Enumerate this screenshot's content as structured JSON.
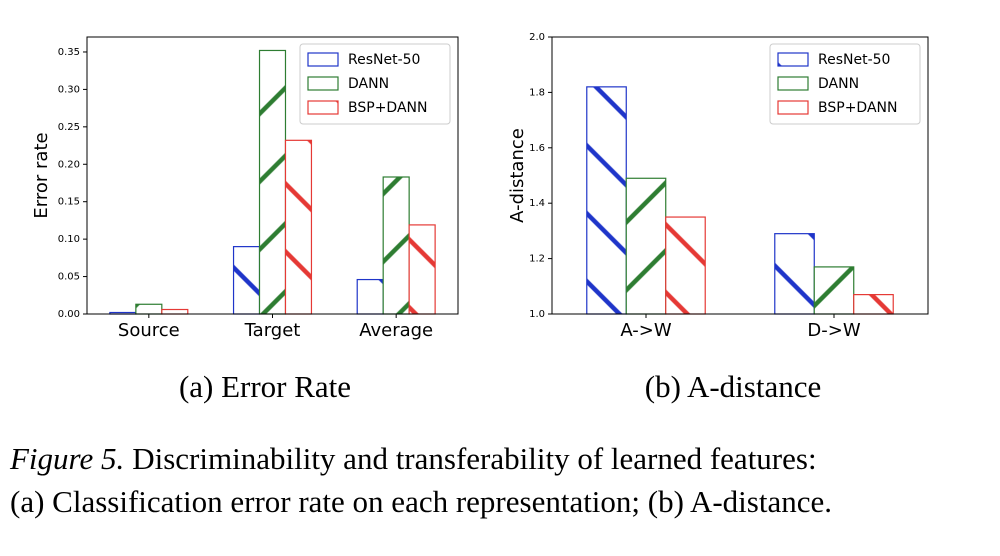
{
  "chart_data": [
    {
      "type": "bar",
      "title": "(a) Error Rate",
      "ylabel": "Error rate",
      "categories": [
        "Source",
        "Target",
        "Average"
      ],
      "series": [
        {
          "name": "ResNet-50",
          "color": "#1f35c9",
          "hatch": "/",
          "values": [
            0.002,
            0.09,
            0.046
          ]
        },
        {
          "name": "DANN",
          "color": "#2e7d32",
          "hatch": "\\",
          "values": [
            0.013,
            0.352,
            0.183
          ]
        },
        {
          "name": "BSP+DANN",
          "color": "#e53935",
          "hatch": "/",
          "values": [
            0.006,
            0.232,
            0.119
          ]
        }
      ],
      "ylim": [
        0,
        0.37
      ],
      "yticks": [
        {
          "value": 0,
          "label": "0.00"
        },
        0.05,
        {
          "value": 0.1,
          "label": "0.10"
        },
        0.15,
        {
          "value": 0.2,
          "label": "0.20"
        },
        0.25,
        {
          "value": 0.3,
          "label": "0.30"
        },
        0.35
      ],
      "legend": "upper right",
      "grid": false
    },
    {
      "type": "bar",
      "title": "(b) A-distance",
      "ylabel": "A-distance",
      "categories": [
        "A->W",
        "D->W"
      ],
      "series": [
        {
          "name": "ResNet-50",
          "color": "#1f35c9",
          "hatch": "/",
          "values": [
            1.82,
            1.29
          ]
        },
        {
          "name": "DANN",
          "color": "#2e7d32",
          "hatch": "\\",
          "values": [
            1.49,
            1.17
          ]
        },
        {
          "name": "BSP+DANN",
          "color": "#e53935",
          "hatch": "/",
          "values": [
            1.35,
            1.07
          ]
        }
      ],
      "ylim": [
        1.0,
        2.0
      ],
      "yticks": [
        {
          "value": 1.0,
          "label": "1.0"
        },
        1.2,
        1.4,
        1.6,
        1.8,
        {
          "value": 2.0,
          "label": "2.0"
        }
      ],
      "legend": "upper right",
      "grid": false
    }
  ],
  "caption": {
    "label": "Figure 5.",
    "text": [
      "Discriminability and transferability of learned features:",
      "(a) Classification error rate on each representation; (b)  A-distance."
    ]
  }
}
